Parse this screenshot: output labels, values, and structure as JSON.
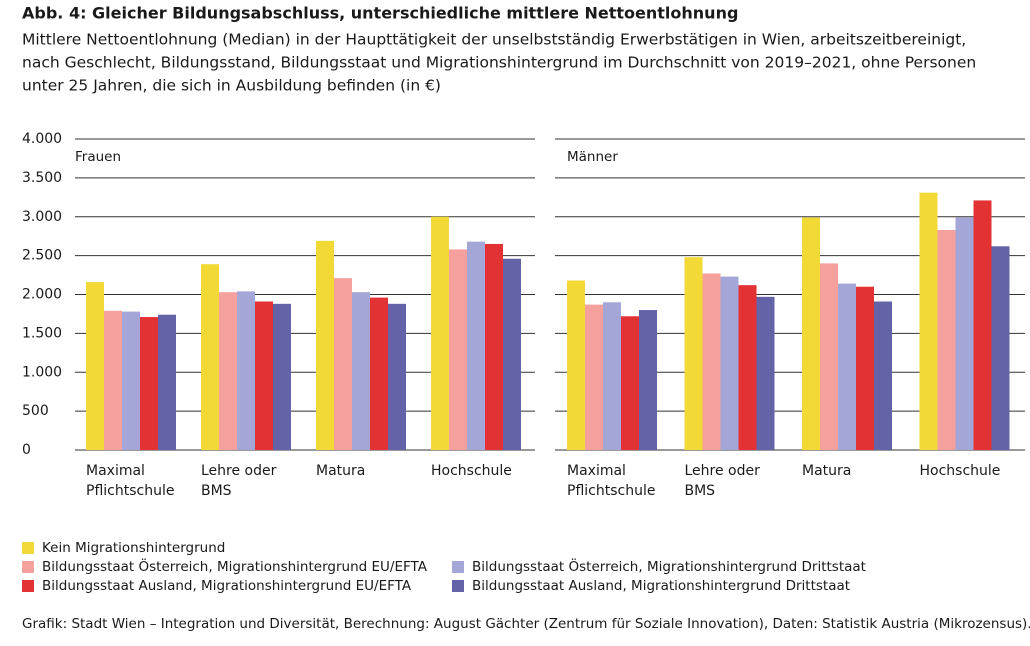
{
  "chart_data": {
    "type": "bar",
    "title": "Abb. 4: Gleicher Bildungsabschluss, unterschiedliche mittlere Nettoentlohnung",
    "subtitle": [
      "Mittlere Nettoentlohnung (Median) in der Haupttätigkeit der unselbstständig Erwerbstätigen in Wien, arbeitszeitbereinigt,",
      "nach Geschlecht, Bildungsstand, Bildungsstaat und Migrationshintergrund im Durchschnitt von 2019–2021, ohne Personen",
      "unter 25 Jahren, die sich in Ausbildung befinden (in €)"
    ],
    "source": "Grafik: Stadt Wien – Integration und Diversität, Berechnung: August Gächter (Zentrum für Soziale Innovation), Daten: Statistik Austria (Mikrozensus).",
    "categories": [
      [
        "Maximal",
        "Pflichtschule"
      ],
      [
        "Lehre oder",
        "BMS"
      ],
      [
        "Matura"
      ],
      [
        "Hochschule"
      ]
    ],
    "series": [
      {
        "name": "Kein Migrationshintergrund",
        "color": "#f2d935"
      },
      {
        "name": "Bildungsstaat Österreich, Migrationshintergrund EU/EFTA",
        "color": "#f4a19d"
      },
      {
        "name": "Bildungsstaat Österreich, Migrationshintergrund Drittstaat",
        "color": "#a3a6d6"
      },
      {
        "name": "Bildungsstaat Ausland, Migrationshintergrund EU/EFTA",
        "color": "#e23234"
      },
      {
        "name": "Bildungsstaat Ausland, Migrationshintergrund Drittstaat",
        "color": "#6563a8"
      }
    ],
    "panels": [
      {
        "title": "Frauen",
        "values": [
          [
            2160,
            2390,
            2690,
            3000
          ],
          [
            1790,
            2030,
            2210,
            2580
          ],
          [
            1780,
            2040,
            2030,
            2680
          ],
          [
            1710,
            1910,
            1960,
            2650
          ],
          [
            1740,
            1880,
            1880,
            2460
          ]
        ]
      },
      {
        "title": "Männer",
        "values": [
          [
            2180,
            2480,
            2990,
            3310
          ],
          [
            1870,
            2270,
            2400,
            2830
          ],
          [
            1900,
            2230,
            2140,
            2990
          ],
          [
            1720,
            2120,
            2100,
            3210
          ],
          [
            1800,
            1970,
            1910,
            2620
          ]
        ]
      }
    ],
    "ylim": [
      0,
      4000
    ],
    "yticks": [
      0,
      500,
      {
        "value": 1000,
        "label": "1.000"
      },
      {
        "value": 1500,
        "label": "1.500"
      },
      {
        "value": 2000,
        "label": "2.000"
      },
      {
        "value": 2500,
        "label": "2.500"
      },
      {
        "value": 3000,
        "label": "3.000"
      },
      {
        "value": 3500,
        "label": "3.500"
      },
      {
        "value": 4000,
        "label": "4.000"
      }
    ],
    "grid": true
  }
}
